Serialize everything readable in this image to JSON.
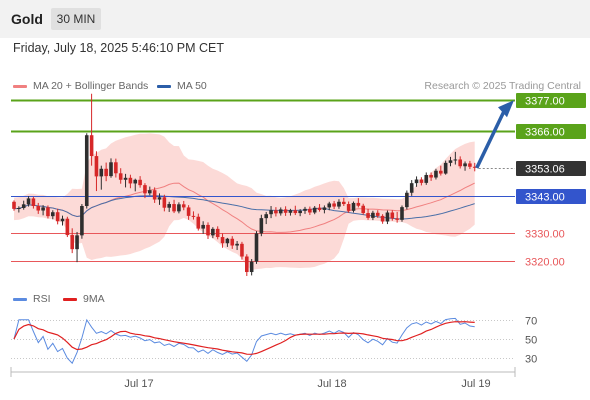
{
  "instrument": "Gold",
  "timeframe": "30 MIN",
  "datetime": "Friday, July 18, 2025 5:46:10 PM CET",
  "legend": {
    "ma_bb": "MA 20 + Bollinger Bands",
    "ma50": "MA 50",
    "rsi": "RSI",
    "ma9": "9MA"
  },
  "credit": "Research © 2025 Trading Central",
  "colors": {
    "bull": "#2e2e2e",
    "bear": "#d62728",
    "bollinger_fill": "#fcd4d0",
    "ma20": "#f08080",
    "ma50": "#4a6fa8",
    "resistance": "#5aa31a",
    "support": "#e8575a",
    "pivot": "#3355cc",
    "arrow": "#2b5ea8",
    "rsi": "#5b8be0",
    "rsi_ma": "#e02020"
  },
  "chart_data": [
    {
      "type": "candlestick",
      "x_ticks": [
        "Jul 17",
        "Jul 18",
        "Jul 19"
      ],
      "levels": [
        {
          "value": 3377.0,
          "label": "3377.00",
          "kind": "resistance"
        },
        {
          "value": 3366.0,
          "label": "3366.00",
          "kind": "resistance"
        },
        {
          "value": 3353.06,
          "label": "3353.06",
          "kind": "last_price"
        },
        {
          "value": 3343.0,
          "label": "3343.00",
          "kind": "pivot"
        },
        {
          "value": 3330.0,
          "label": "3330.00",
          "kind": "support"
        },
        {
          "value": 3320.0,
          "label": "3320.00",
          "kind": "support"
        }
      ],
      "y_range": [
        3311.5,
        3378.5
      ],
      "arrow": {
        "from_index": 95,
        "from": 3353,
        "to": 3377
      },
      "candles": [
        [
          3341.0,
          3341.5,
          3337.8,
          3338.5
        ],
        [
          3338.5,
          3339.4,
          3337.2,
          3338.8
        ],
        [
          3338.8,
          3341.4,
          3338.2,
          3340.1
        ],
        [
          3340.1,
          3343.0,
          3339.3,
          3342.2
        ],
        [
          3342.2,
          3342.8,
          3338.6,
          3339.5
        ],
        [
          3339.5,
          3340.6,
          3336.7,
          3337.9
        ],
        [
          3337.9,
          3339.8,
          3336.2,
          3339.0
        ],
        [
          3339.0,
          3339.7,
          3335.1,
          3335.9
        ],
        [
          3335.9,
          3338.0,
          3334.8,
          3337.3
        ],
        [
          3337.3,
          3338.5,
          3333.0,
          3334.1
        ],
        [
          3334.1,
          3336.1,
          3332.6,
          3335.0
        ],
        [
          3335.0,
          3335.7,
          3328.5,
          3329.2
        ],
        [
          3329.2,
          3331.6,
          3322.8,
          3324.2
        ],
        [
          3324.2,
          3330.3,
          3319.6,
          3329.1
        ],
        [
          3329.1,
          3340.2,
          3327.9,
          3339.5
        ],
        [
          3339.5,
          3365.3,
          3338.6,
          3364.6
        ],
        [
          3364.6,
          3379.3,
          3353.8,
          3357.2
        ],
        [
          3357.2,
          3358.9,
          3344.8,
          3350.0
        ],
        [
          3350.0,
          3353.8,
          3345.3,
          3352.7
        ],
        [
          3352.7,
          3354.9,
          3348.3,
          3350.1
        ],
        [
          3350.1,
          3356.4,
          3349.5,
          3355.0
        ],
        [
          3355.0,
          3356.3,
          3349.6,
          3351.1
        ],
        [
          3351.1,
          3352.9,
          3347.4,
          3348.8
        ],
        [
          3348.8,
          3350.9,
          3346.1,
          3349.5
        ],
        [
          3349.5,
          3350.6,
          3345.8,
          3347.5
        ],
        [
          3347.5,
          3349.2,
          3344.7,
          3348.8
        ],
        [
          3348.8,
          3350.1,
          3346.0,
          3346.9
        ],
        [
          3346.9,
          3347.6,
          3342.3,
          3344.0
        ],
        [
          3344.0,
          3346.4,
          3343.3,
          3345.1
        ],
        [
          3345.1,
          3346.1,
          3340.6,
          3341.8
        ],
        [
          3341.8,
          3344.0,
          3339.9,
          3342.6
        ],
        [
          3342.6,
          3343.5,
          3337.6,
          3338.9
        ],
        [
          3338.9,
          3341.0,
          3337.4,
          3340.2
        ],
        [
          3340.2,
          3341.7,
          3337.0,
          3337.6
        ],
        [
          3337.6,
          3340.8,
          3336.9,
          3340.1
        ],
        [
          3340.1,
          3341.3,
          3338.0,
          3339.0
        ],
        [
          3339.0,
          3339.8,
          3334.6,
          3336.0
        ],
        [
          3336.0,
          3337.6,
          3334.7,
          3335.7
        ],
        [
          3335.7,
          3336.8,
          3330.8,
          3331.5
        ],
        [
          3331.5,
          3334.1,
          3329.6,
          3332.8
        ],
        [
          3332.8,
          3333.7,
          3327.8,
          3329.1
        ],
        [
          3329.1,
          3332.0,
          3328.1,
          3331.4
        ],
        [
          3331.4,
          3332.3,
          3327.7,
          3328.5
        ],
        [
          3328.5,
          3329.8,
          3324.7,
          3326.3
        ],
        [
          3326.3,
          3328.2,
          3325.0,
          3327.9
        ],
        [
          3327.9,
          3328.8,
          3324.3,
          3325.5
        ],
        [
          3325.5,
          3327.1,
          3323.9,
          3326.1
        ],
        [
          3326.1,
          3326.8,
          3320.5,
          3321.6
        ],
        [
          3321.6,
          3322.4,
          3314.7,
          3316.1
        ],
        [
          3316.1,
          3320.7,
          3314.9,
          3319.8
        ],
        [
          3319.8,
          3330.6,
          3319.0,
          3329.8
        ],
        [
          3329.8,
          3336.4,
          3328.8,
          3335.2
        ],
        [
          3335.2,
          3337.4,
          3333.1,
          3336.6
        ],
        [
          3336.6,
          3339.5,
          3335.2,
          3338.0
        ],
        [
          3338.0,
          3339.1,
          3335.8,
          3336.9
        ],
        [
          3336.9,
          3339.0,
          3336.1,
          3338.3
        ],
        [
          3338.3,
          3339.4,
          3336.0,
          3337.1
        ],
        [
          3337.1,
          3338.5,
          3336.1,
          3338.0
        ],
        [
          3338.0,
          3339.6,
          3336.3,
          3337.0
        ],
        [
          3337.0,
          3338.4,
          3335.9,
          3337.8
        ],
        [
          3337.8,
          3339.2,
          3336.7,
          3338.5
        ],
        [
          3338.5,
          3339.3,
          3336.3,
          3337.2
        ],
        [
          3337.2,
          3339.5,
          3336.6,
          3338.9
        ],
        [
          3338.9,
          3340.2,
          3337.5,
          3338.1
        ],
        [
          3338.1,
          3339.7,
          3336.9,
          3339.0
        ],
        [
          3339.0,
          3341.0,
          3338.0,
          3340.4
        ],
        [
          3340.4,
          3341.3,
          3338.4,
          3339.3
        ],
        [
          3339.3,
          3341.9,
          3338.5,
          3341.0
        ],
        [
          3341.0,
          3342.4,
          3339.5,
          3340.2
        ],
        [
          3340.2,
          3341.1,
          3337.1,
          3337.8
        ],
        [
          3337.8,
          3341.1,
          3337.2,
          3340.6
        ],
        [
          3340.6,
          3342.3,
          3339.0,
          3339.6
        ],
        [
          3339.6,
          3340.3,
          3336.4,
          3337.0
        ],
        [
          3337.0,
          3338.5,
          3334.6,
          3335.3
        ],
        [
          3335.3,
          3337.8,
          3334.5,
          3337.1
        ],
        [
          3337.1,
          3338.0,
          3335.3,
          3336.0
        ],
        [
          3336.0,
          3336.6,
          3333.2,
          3334.0
        ],
        [
          3334.0,
          3337.9,
          3333.1,
          3337.2
        ],
        [
          3337.2,
          3338.0,
          3334.3,
          3335.1
        ],
        [
          3335.1,
          3337.4,
          3333.6,
          3334.6
        ],
        [
          3334.6,
          3339.7,
          3333.9,
          3339.1
        ],
        [
          3339.1,
          3345.0,
          3338.3,
          3344.2
        ],
        [
          3344.2,
          3348.7,
          3343.1,
          3347.6
        ],
        [
          3347.6,
          3350.0,
          3346.3,
          3348.9
        ],
        [
          3348.9,
          3349.7,
          3346.8,
          3347.7
        ],
        [
          3347.7,
          3351.4,
          3347.0,
          3350.5
        ],
        [
          3350.5,
          3351.4,
          3348.4,
          3349.6
        ],
        [
          3349.6,
          3352.7,
          3348.9,
          3352.0
        ],
        [
          3352.0,
          3353.8,
          3350.3,
          3351.0
        ],
        [
          3351.0,
          3355.6,
          3350.6,
          3354.8
        ],
        [
          3354.8,
          3356.9,
          3353.6,
          3355.7
        ],
        [
          3355.7,
          3358.7,
          3354.2,
          3356.0
        ],
        [
          3356.0,
          3357.1,
          3352.8,
          3353.6
        ],
        [
          3353.6,
          3355.3,
          3352.0,
          3354.6
        ],
        [
          3354.6,
          3355.5,
          3352.6,
          3353.4
        ],
        [
          3353.4,
          3354.8,
          3351.8,
          3353.1
        ]
      ]
    },
    {
      "type": "line",
      "name": "RSI",
      "y_ticks": [
        70,
        50,
        30
      ],
      "y_range": [
        22,
        78
      ]
    }
  ]
}
